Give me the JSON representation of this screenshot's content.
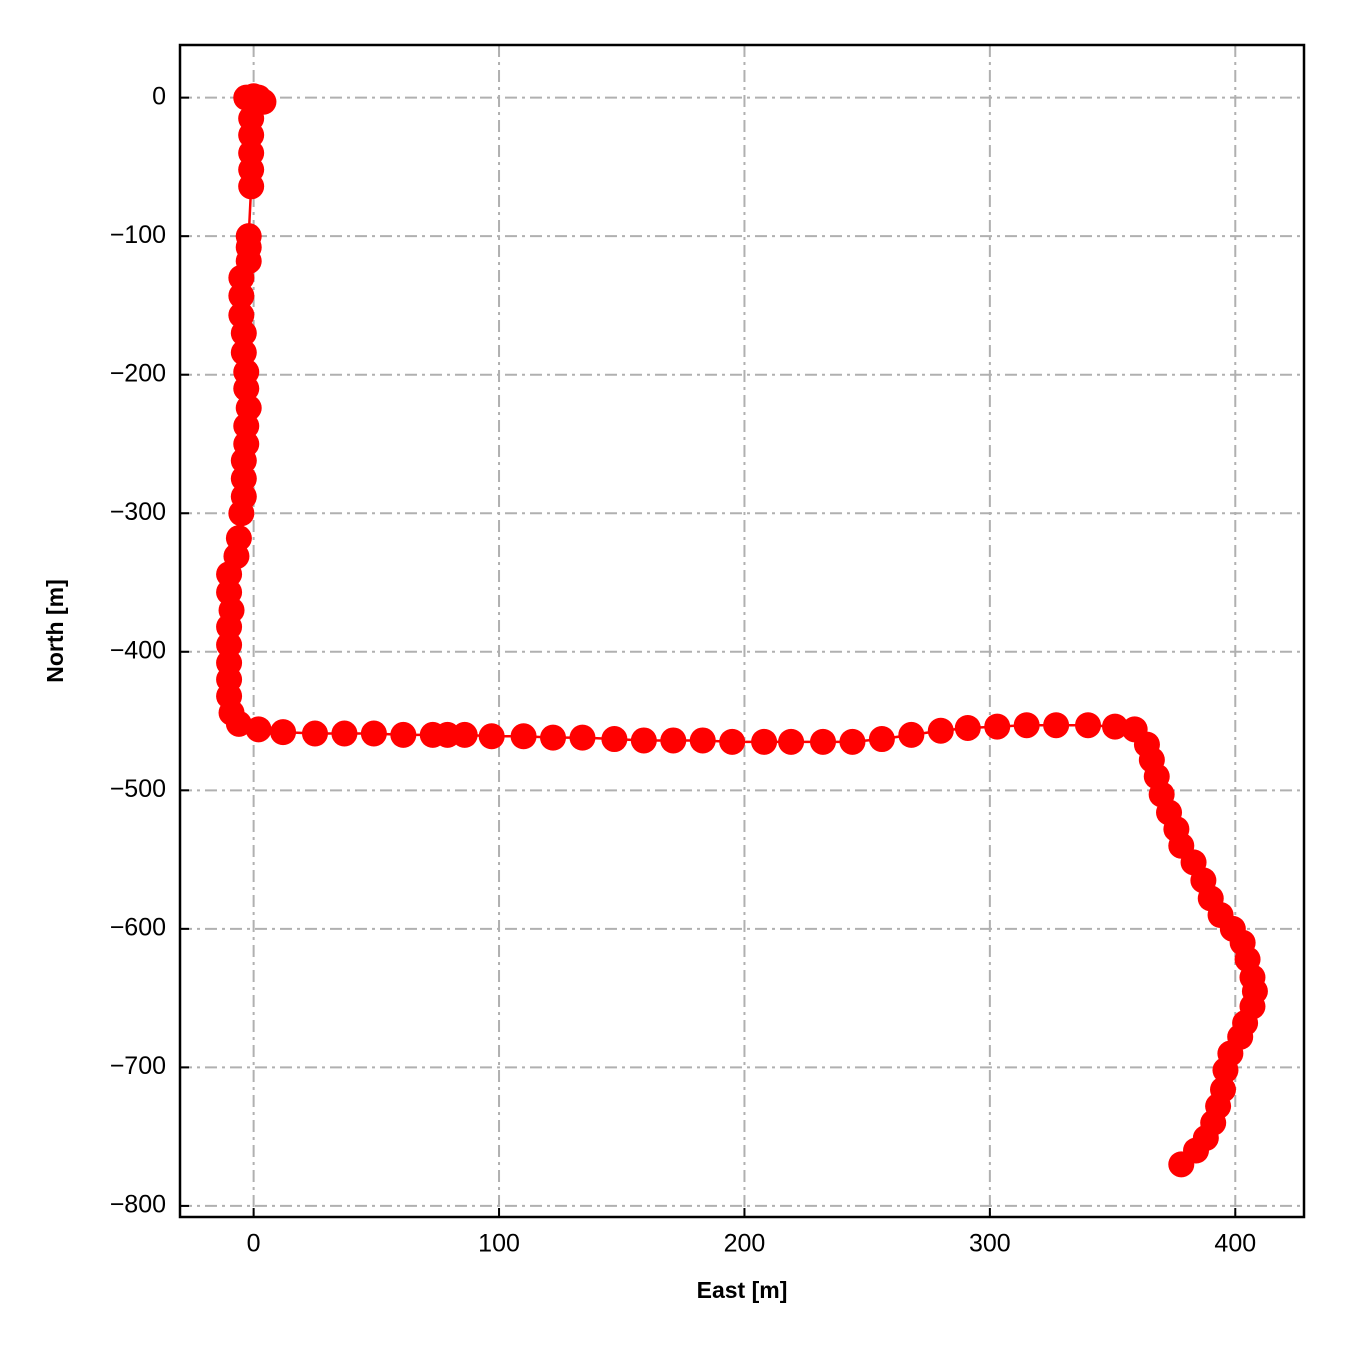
{
  "chart_data": {
    "type": "line",
    "xlabel": "East [m]",
    "ylabel": "North [m]",
    "x": [
      -3,
      0,
      2,
      4,
      -1,
      -1,
      -1,
      -1,
      -1,
      -2,
      -2,
      -2,
      -5,
      -5,
      -5,
      -4,
      -4,
      -3,
      -3,
      -2,
      -3,
      -3,
      -4,
      -4,
      -4,
      -5,
      -6,
      -7,
      -10,
      -10,
      -9,
      -10,
      -10,
      -10,
      -10,
      -10,
      -9,
      -6,
      2,
      12,
      25,
      37,
      49,
      61,
      73,
      79,
      86,
      97,
      110,
      122,
      134,
      147,
      159,
      171,
      183,
      195,
      208,
      219,
      232,
      244,
      256,
      268,
      280,
      291,
      303,
      315,
      327,
      340,
      351,
      359,
      364,
      366,
      368,
      370,
      373,
      376,
      378,
      383,
      387,
      390,
      394,
      399,
      403,
      405,
      407,
      408,
      407,
      404,
      402,
      398,
      396,
      395,
      393,
      391,
      388,
      384,
      378
    ],
    "series": [
      {
        "color": "#ff0000",
        "marker": "o",
        "values": [
          0,
          1,
          0,
          -3,
          -15,
          -27,
          -40,
          -52,
          -64,
          -100,
          -108,
          -118,
          -130,
          -143,
          -157,
          -170,
          -184,
          -198,
          -210,
          -224,
          -237,
          -250,
          -262,
          -275,
          -288,
          -300,
          -318,
          -331,
          -344,
          -357,
          -370,
          -382,
          -395,
          -408,
          -420,
          -432,
          -444,
          -452,
          -456,
          -458,
          -459,
          -459,
          -459,
          -460,
          -460,
          -460,
          -460,
          -461,
          -461,
          -462,
          -462,
          -463,
          -464,
          -464,
          -464,
          -465,
          -465,
          -465,
          -465,
          -465,
          -463,
          -460,
          -457,
          -455,
          -454,
          -453,
          -453,
          -453,
          -454,
          -456,
          -467,
          -478,
          -490,
          -503,
          -516,
          -528,
          -540,
          -552,
          -565,
          -578,
          -590,
          -600,
          -610,
          -622,
          -635,
          -645,
          -656,
          -668,
          -678,
          -690,
          -702,
          -716,
          -728,
          -740,
          -751,
          -760,
          -770
        ]
      }
    ],
    "xlim": [
      -30,
      428
    ],
    "ylim": [
      -808,
      38
    ],
    "xticks": [
      0,
      100,
      200,
      300,
      400
    ],
    "yticks": [
      0,
      {
        "value": -100,
        "label": "−100"
      },
      {
        "value": -200,
        "label": "−200"
      },
      {
        "value": -300,
        "label": "−300"
      },
      {
        "value": -400,
        "label": "−400"
      },
      {
        "value": -500,
        "label": "−500"
      },
      {
        "value": -600,
        "label": "−600"
      },
      {
        "value": -700,
        "label": "−700"
      },
      {
        "value": -800,
        "label": "−800"
      }
    ],
    "grid": true
  }
}
